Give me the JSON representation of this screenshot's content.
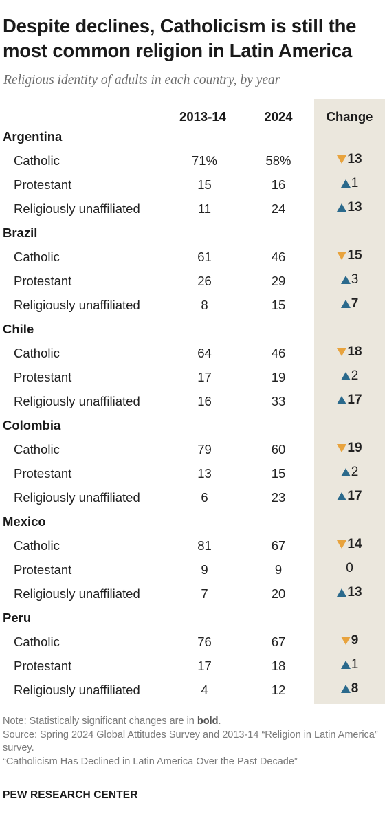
{
  "title": "Despite declines, Catholicism is still the most common religion in Latin America",
  "subtitle": "Religious identity of adults in each country, by year",
  "colors": {
    "decline": "#e8a33d",
    "increase": "#2b6a8c",
    "change_band": "#ebe7dd"
  },
  "chart_data": {
    "type": "table",
    "columns": [
      "2013-14",
      "2024",
      "Change"
    ],
    "groups": [
      {
        "country": "Argentina",
        "rows": [
          {
            "label": "Catholic",
            "y2013_14": "71%",
            "y2024": "58%",
            "change": "13",
            "direction": "down",
            "significant": true
          },
          {
            "label": "Protestant",
            "y2013_14": "15",
            "y2024": "16",
            "change": "1",
            "direction": "up",
            "significant": false
          },
          {
            "label": "Religiously unaffiliated",
            "y2013_14": "11",
            "y2024": "24",
            "change": "13",
            "direction": "up",
            "significant": true
          }
        ]
      },
      {
        "country": "Brazil",
        "rows": [
          {
            "label": "Catholic",
            "y2013_14": "61",
            "y2024": "46",
            "change": "15",
            "direction": "down",
            "significant": true
          },
          {
            "label": "Protestant",
            "y2013_14": "26",
            "y2024": "29",
            "change": "3",
            "direction": "up",
            "significant": false
          },
          {
            "label": "Religiously unaffiliated",
            "y2013_14": "8",
            "y2024": "15",
            "change": "7",
            "direction": "up",
            "significant": true
          }
        ]
      },
      {
        "country": "Chile",
        "rows": [
          {
            "label": "Catholic",
            "y2013_14": "64",
            "y2024": "46",
            "change": "18",
            "direction": "down",
            "significant": true
          },
          {
            "label": "Protestant",
            "y2013_14": "17",
            "y2024": "19",
            "change": "2",
            "direction": "up",
            "significant": false
          },
          {
            "label": "Religiously unaffiliated",
            "y2013_14": "16",
            "y2024": "33",
            "change": "17",
            "direction": "up",
            "significant": true
          }
        ]
      },
      {
        "country": "Colombia",
        "rows": [
          {
            "label": "Catholic",
            "y2013_14": "79",
            "y2024": "60",
            "change": "19",
            "direction": "down",
            "significant": true
          },
          {
            "label": "Protestant",
            "y2013_14": "13",
            "y2024": "15",
            "change": "2",
            "direction": "up",
            "significant": false
          },
          {
            "label": "Religiously unaffiliated",
            "y2013_14": "6",
            "y2024": "23",
            "change": "17",
            "direction": "up",
            "significant": true
          }
        ]
      },
      {
        "country": "Mexico",
        "rows": [
          {
            "label": "Catholic",
            "y2013_14": "81",
            "y2024": "67",
            "change": "14",
            "direction": "down",
            "significant": true
          },
          {
            "label": "Protestant",
            "y2013_14": "9",
            "y2024": "9",
            "change": "0",
            "direction": "none",
            "significant": false
          },
          {
            "label": "Religiously unaffiliated",
            "y2013_14": "7",
            "y2024": "20",
            "change": "13",
            "direction": "up",
            "significant": true
          }
        ]
      },
      {
        "country": "Peru",
        "rows": [
          {
            "label": "Catholic",
            "y2013_14": "76",
            "y2024": "67",
            "change": "9",
            "direction": "down",
            "significant": true
          },
          {
            "label": "Protestant",
            "y2013_14": "17",
            "y2024": "18",
            "change": "1",
            "direction": "up",
            "significant": false
          },
          {
            "label": "Religiously unaffiliated",
            "y2013_14": "4",
            "y2024": "12",
            "change": "8",
            "direction": "up",
            "significant": true
          }
        ]
      }
    ]
  },
  "notes": {
    "note_prefix": "Note: Statistically significant changes are in ",
    "note_bold": "bold",
    "note_suffix": ".",
    "source": "Source: Spring 2024 Global Attitudes Survey and 2013-14 “Religion in Latin America” survey.",
    "report": "“Catholicism Has Declined in Latin America Over the Past Decade”"
  },
  "brand": "PEW RESEARCH CENTER"
}
